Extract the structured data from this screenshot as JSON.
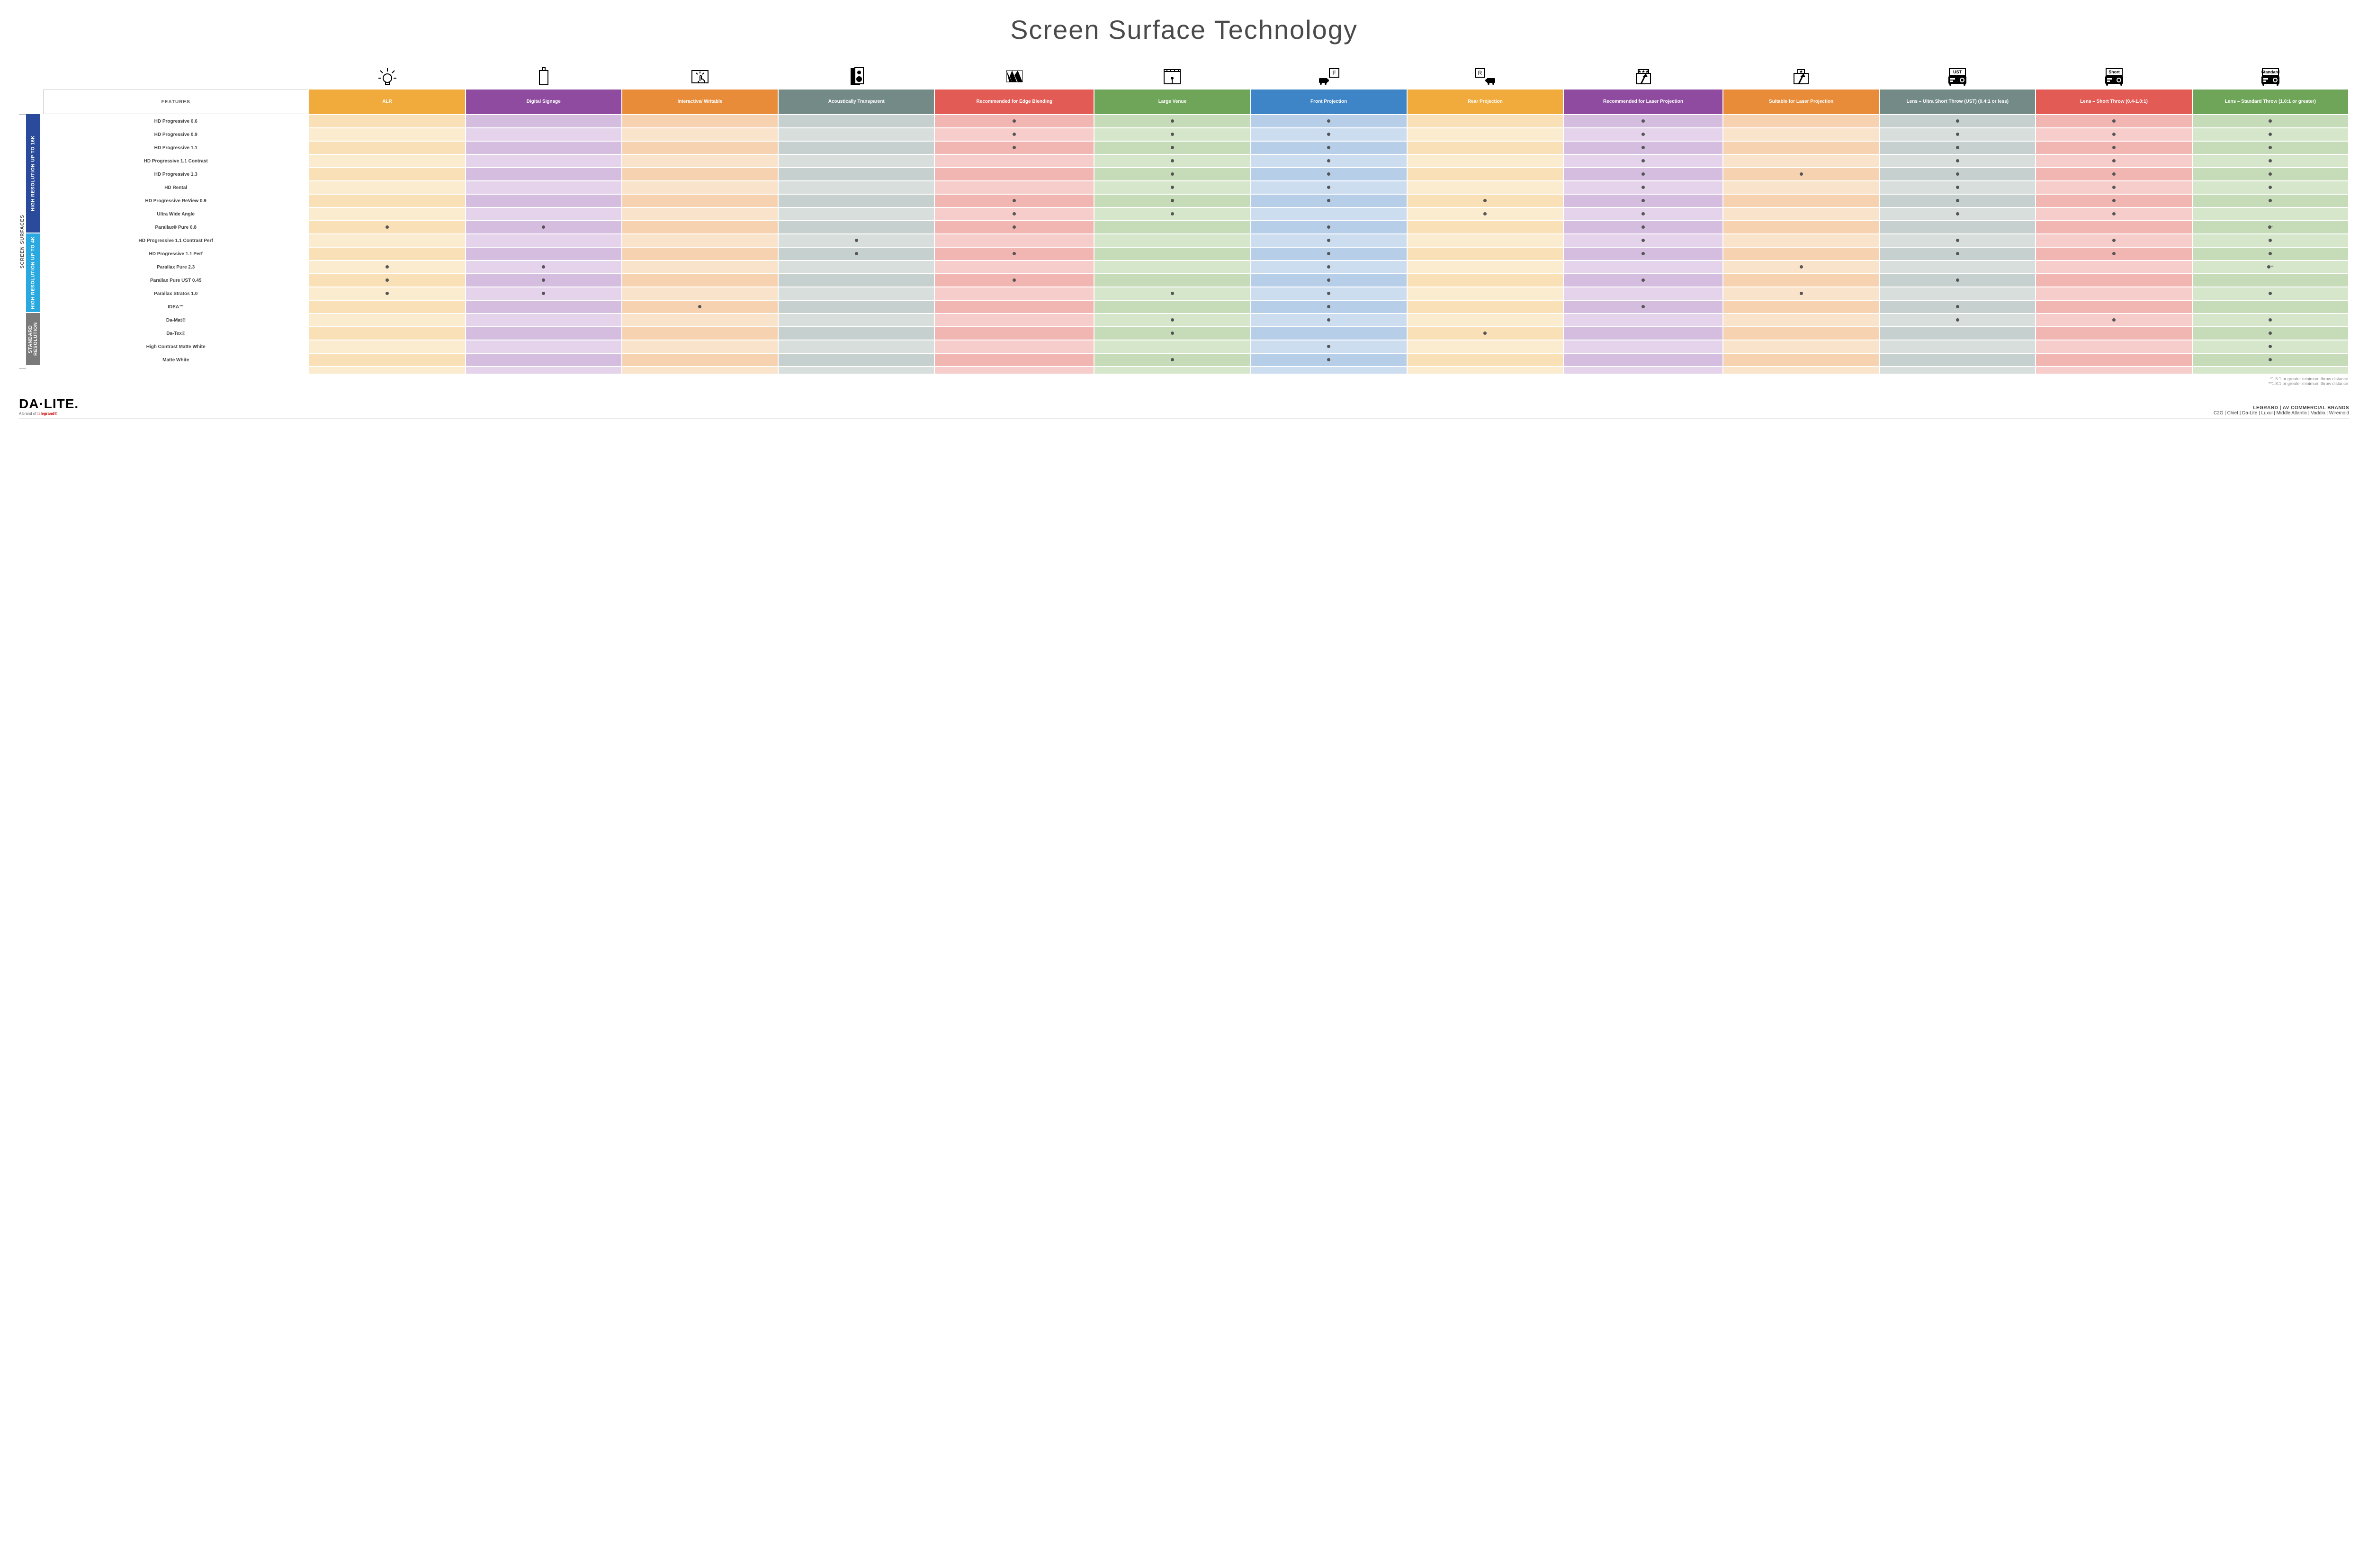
{
  "title": "Screen Surface Technology",
  "features_label": "FEATURES",
  "side_label": "SCREEN SURFACES",
  "columns": [
    {
      "key": "alr",
      "label": "ALR",
      "color": "#f0ab3c",
      "tintA": "#f9e0b6",
      "tintB": "#fceccf",
      "icon": "bulb"
    },
    {
      "key": "signage",
      "label": "Digital Signage",
      "color": "#8e4b9f",
      "tintA": "#d5bde0",
      "tintB": "#e4d3ea",
      "icon": "signage"
    },
    {
      "key": "interactive",
      "label": "Interactive/ Writable",
      "color": "#e88c3a",
      "tintA": "#f6d2b0",
      "tintB": "#fae3cb",
      "icon": "touch"
    },
    {
      "key": "acoustic",
      "label": "Acoustically Transparent",
      "color": "#738a87",
      "tintA": "#c6d0ce",
      "tintB": "#d7dedc",
      "icon": "speaker"
    },
    {
      "key": "edge",
      "label": "Recommended for Edge Blending",
      "color": "#e25b55",
      "tintA": "#f1b6b2",
      "tintB": "#f6cdca",
      "icon": "blend"
    },
    {
      "key": "venue",
      "label": "Large Venue",
      "color": "#6fa559",
      "tintA": "#c6dcb9",
      "tintB": "#d6e6cb",
      "icon": "venue"
    },
    {
      "key": "front",
      "label": "Front Projection",
      "color": "#3d85c6",
      "tintA": "#b6cee8",
      "tintB": "#cdddf0",
      "icon": "front"
    },
    {
      "key": "rear",
      "label": "Rear Projection",
      "color": "#f0ab3c",
      "tintA": "#f9e0b6",
      "tintB": "#fceccf",
      "icon": "rear"
    },
    {
      "key": "laserRec",
      "label": "Recommended for Laser Projection",
      "color": "#8e4b9f",
      "tintA": "#d5bde0",
      "tintB": "#e4d3ea",
      "icon": "laser3"
    },
    {
      "key": "laserSuit",
      "label": "Suitable for Laser Projection",
      "color": "#e88c3a",
      "tintA": "#f6d2b0",
      "tintB": "#fae3cb",
      "icon": "laser1"
    },
    {
      "key": "ust",
      "label": "Lens – Ultra Short Throw (UST) (0.4:1 or less)",
      "color": "#738a87",
      "tintA": "#c6d0ce",
      "tintB": "#d7dedc",
      "icon": "proj",
      "projLabel": "UST"
    },
    {
      "key": "short",
      "label": "Lens – Short Throw (0.4-1.0:1)",
      "color": "#e25b55",
      "tintA": "#f1b6b2",
      "tintB": "#f6cdca",
      "icon": "proj",
      "projLabel": "Short"
    },
    {
      "key": "std",
      "label": "Lens – Standard Throw (1.0:1 or greater)",
      "color": "#6fa559",
      "tintA": "#c6dcb9",
      "tintB": "#d6e6cb",
      "icon": "proj",
      "projLabel": "Standard"
    }
  ],
  "groups": [
    {
      "key": "g16k",
      "label": "HIGH RESOLUTION UP TO 16K",
      "color": "#2a4b9b",
      "rows": 9
    },
    {
      "key": "g4k",
      "label": "HIGH RESOLUTION UP TO 4K",
      "color": "#2aa8e0",
      "rows": 6
    },
    {
      "key": "gstd",
      "label": "STANDARD RESOLUTION",
      "color": "#7a7a7a",
      "rows": 4
    }
  ],
  "rows": [
    {
      "g": "g16k",
      "label": "HD Progressive 0.6",
      "dots": {
        "edge": "•",
        "venue": "•",
        "front": "•",
        "laserRec": "•",
        "ust": "•",
        "short": "•",
        "std": "•"
      }
    },
    {
      "g": "g16k",
      "label": "HD Progressive 0.9",
      "dots": {
        "edge": "•",
        "venue": "•",
        "front": "•",
        "laserRec": "•",
        "ust": "•",
        "short": "•",
        "std": "•"
      }
    },
    {
      "g": "g16k",
      "label": "HD Progressive 1.1",
      "dots": {
        "edge": "•",
        "venue": "•",
        "front": "•",
        "laserRec": "•",
        "ust": "•",
        "short": "•",
        "std": "•"
      }
    },
    {
      "g": "g16k",
      "label": "HD Progressive 1.1 Contrast",
      "dots": {
        "venue": "•",
        "front": "•",
        "laserRec": "•",
        "ust": "•",
        "short": "•",
        "std": "•"
      }
    },
    {
      "g": "g16k",
      "label": "HD Progressive 1.3",
      "dots": {
        "venue": "•",
        "front": "•",
        "laserRec": "•",
        "laserSuit": "•",
        "ust": "•",
        "short": "•",
        "std": "•"
      }
    },
    {
      "g": "g16k",
      "label": "HD Rental",
      "dots": {
        "venue": "•",
        "front": "•",
        "laserRec": "•",
        "ust": "•",
        "short": "•",
        "std": "•"
      }
    },
    {
      "g": "g16k",
      "label": "HD Progressive ReView 0.9",
      "dots": {
        "edge": "•",
        "venue": "•",
        "front": "•",
        "rear": "•",
        "laserRec": "•",
        "ust": "•",
        "short": "•",
        "std": "•"
      }
    },
    {
      "g": "g16k",
      "label": "Ultra Wide Angle",
      "dots": {
        "edge": "•",
        "venue": "•",
        "rear": "•",
        "laserRec": "•",
        "ust": "•",
        "short": "•"
      }
    },
    {
      "g": "g16k",
      "label": "Parallax® Pure 0.8",
      "dots": {
        "alr": "•",
        "signage": "•",
        "edge": "•",
        "front": "•",
        "laserRec": "•",
        "std": "•*"
      }
    },
    {
      "g": "g4k",
      "label": "HD Progressive 1.1 Contrast Perf",
      "dots": {
        "acoustic": "•",
        "front": "•",
        "laserRec": "•",
        "ust": "•",
        "short": "•",
        "std": "•"
      }
    },
    {
      "g": "g4k",
      "label": "HD Progressive 1.1 Perf",
      "dots": {
        "acoustic": "•",
        "edge": "•",
        "front": "•",
        "laserRec": "•",
        "ust": "•",
        "short": "•",
        "std": "•"
      }
    },
    {
      "g": "g4k",
      "label": "Parallax Pure 2.3",
      "dots": {
        "alr": "•",
        "signage": "•",
        "front": "•",
        "laserSuit": "•",
        "std": "•**"
      }
    },
    {
      "g": "g4k",
      "label": "Parallax Pure UST 0.45",
      "dots": {
        "alr": "•",
        "signage": "•",
        "edge": "•",
        "front": "•",
        "laserRec": "•",
        "ust": "•"
      }
    },
    {
      "g": "g4k",
      "label": "Parallax Stratos 1.0",
      "dots": {
        "alr": "•",
        "signage": "•",
        "venue": "•",
        "front": "•",
        "laserSuit": "•",
        "std": "•"
      }
    },
    {
      "g": "g4k",
      "label": "IDEA™",
      "dots": {
        "interactive": "•",
        "front": "•",
        "laserRec": "•",
        "ust": "•"
      }
    },
    {
      "g": "gstd",
      "label": "Da-Mat®",
      "dots": {
        "venue": "•",
        "front": "•",
        "ust": "•",
        "short": "•",
        "std": "•"
      }
    },
    {
      "g": "gstd",
      "label": "Da-Tex®",
      "dots": {
        "venue": "•",
        "rear": "•",
        "std": "•"
      }
    },
    {
      "g": "gstd",
      "label": "High Contrast Matte White",
      "dots": {
        "front": "•",
        "std": "•"
      }
    },
    {
      "g": "gstd",
      "label": "Matte White",
      "dots": {
        "venue": "•",
        "front": "•",
        "std": "•"
      }
    }
  ],
  "notes": [
    "*1.5:1 or greater minimum throw distance",
    "**1.8:1 or greater minimum throw distance"
  ],
  "footer": {
    "brand": "DA·LITE.",
    "brand_sub_prefix": "A brand of ",
    "brand_sub_logo": "legrand",
    "right_top": "LEGRAND | AV COMMERCIAL BRANDS",
    "right_bottom": "C2G  |  Chief  |  Da-Lite  |  Luxul  |  Middle Atlantic  |  Vaddio  |  Wiremold"
  }
}
